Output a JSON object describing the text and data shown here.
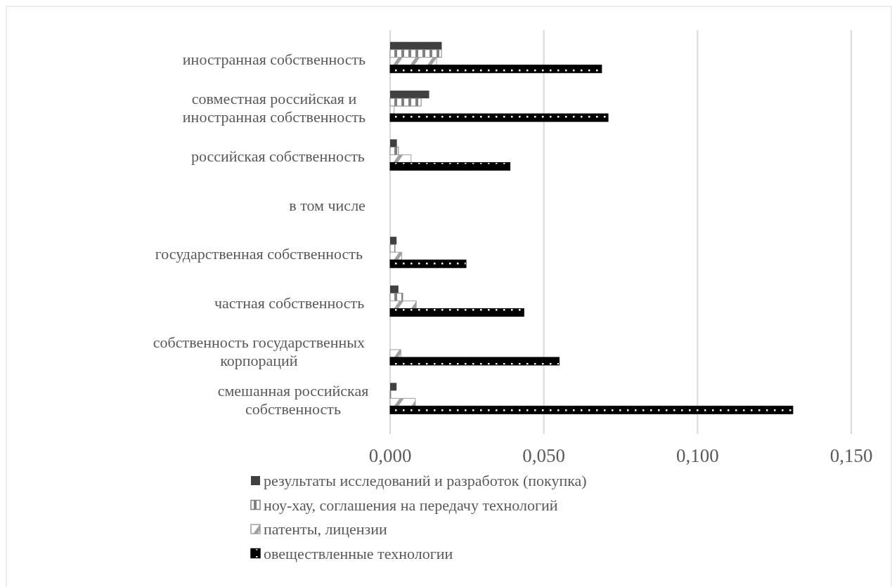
{
  "chart_data": {
    "type": "bar",
    "orientation": "horizontal",
    "categories": [
      "иностранная собственность",
      "совместная российская и иностранная собственность",
      "российская собственность",
      "в том числе",
      "государственная собственность",
      "частная собственность",
      "собственность государственных корпораций",
      "смешанная российская собственность"
    ],
    "series": [
      {
        "name": "результаты исследований и разработок (покупка)",
        "color": "#404040",
        "values": [
          0.0168,
          0.0127,
          0.0022,
          null,
          0.0021,
          0.0027,
          null,
          0.0021
        ]
      },
      {
        "name": "ноу-хау, соглашения на передачу технологий",
        "color": "#808080",
        "values": [
          0.0167,
          0.0101,
          0.0027,
          null,
          0.0016,
          0.0041,
          null,
          0.0002
        ]
      },
      {
        "name": "патенты, лицензии",
        "color": "#a0a0a0",
        "values": [
          0.0151,
          0.0013,
          0.0068,
          null,
          0.0038,
          0.0085,
          0.0035,
          0.0082
        ]
      },
      {
        "name": "овеществленные технологии",
        "color": "#000000",
        "values": [
          0.0688,
          0.0709,
          0.039,
          null,
          0.0247,
          0.0435,
          0.055,
          0.131
        ]
      }
    ],
    "xlim": [
      0,
      0.15
    ],
    "xticks": [
      {
        "value": 0,
        "label": "0,000"
      },
      {
        "value": 0.05,
        "label": "0,050"
      },
      {
        "value": 0.1,
        "label": "0,100"
      },
      {
        "value": 0.15,
        "label": "0,150"
      }
    ],
    "grid": "x",
    "legend": "bottom"
  }
}
